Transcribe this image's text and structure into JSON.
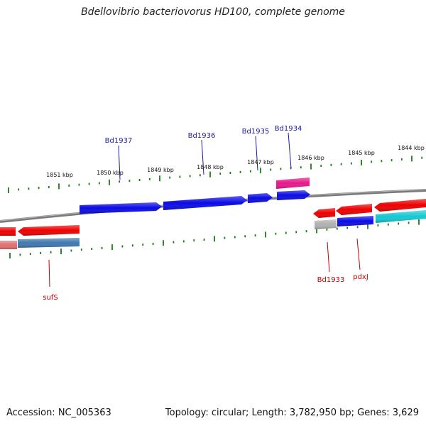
{
  "title": "Bdellovibrio bacteriovorus HD100, complete genome",
  "footer": {
    "accession": "Accession: NC_005363",
    "summary": "Topology: circular; Length: 3,782,950 bp; Genes: 3,629"
  },
  "colors": {
    "backbone": "#808080",
    "ticks": "#1a7a1a",
    "forward_label": "#1a1aa0",
    "reverse_label": "#c00000",
    "blue": "#0a0ae6",
    "red": "#ee0000",
    "magenta": "#e8168c",
    "steel": "#3f78b0",
    "cyan": "#14c8d2",
    "grey": "#b0b0b0",
    "pink": "#e07070"
  },
  "kbp_labels": [
    "1851 kbp",
    "1850 kbp",
    "1849 kbp",
    "1848 kbp",
    "1847 kbp",
    "1846 kbp",
    "1845 kbp",
    "1844 kbp"
  ],
  "forward_gene_labels": [
    "Bd1937",
    "Bd1936",
    "Bd1935",
    "Bd1934"
  ],
  "reverse_gene_labels": [
    "sufS",
    "Bd1933",
    "pdxJ"
  ]
}
